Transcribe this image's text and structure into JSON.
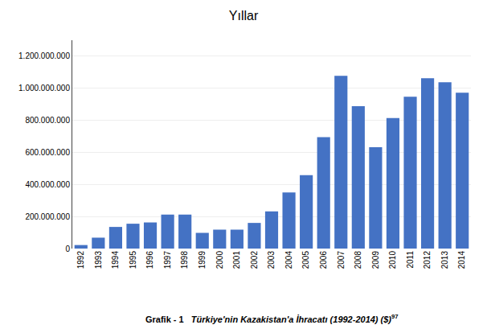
{
  "chart_data": {
    "type": "bar",
    "title": "Yıllar",
    "annotations": [
      "Grafik - 1",
      "Türkiye'nin Kazakistan'a İhracatı (1992-2014) ($)",
      "97"
    ],
    "categories": [
      "1992",
      "1993",
      "1994",
      "1995",
      "1996",
      "1997",
      "1998",
      "1999",
      "2000",
      "2001",
      "2002",
      "2003",
      "2004",
      "2005",
      "2006",
      "2007",
      "2008",
      "2009",
      "2010",
      "2011",
      "2012",
      "2013",
      "2014"
    ],
    "values": [
      22000000,
      68000000,
      135000000,
      155000000,
      163000000,
      212000000,
      212000000,
      98000000,
      118000000,
      118000000,
      160000000,
      232000000,
      350000000,
      458000000,
      695000000,
      1078000000,
      888000000,
      632000000,
      815000000,
      948000000,
      1063000000,
      1038000000,
      973000000
    ],
    "color": "#4472C4",
    "ylim": [
      0,
      1300000000
    ],
    "yticks": [
      0,
      {
        "value": 200000000,
        "label": "200.000.000"
      },
      {
        "value": 400000000,
        "label": "400.000.000"
      },
      {
        "value": 600000000,
        "label": "600.000.000"
      },
      {
        "value": 800000000,
        "label": "800.000.000"
      },
      {
        "value": 1000000000,
        "label": "1.000.000.000"
      },
      {
        "value": 1200000000,
        "label": "1.200.000.000"
      }
    ],
    "grid": true
  }
}
